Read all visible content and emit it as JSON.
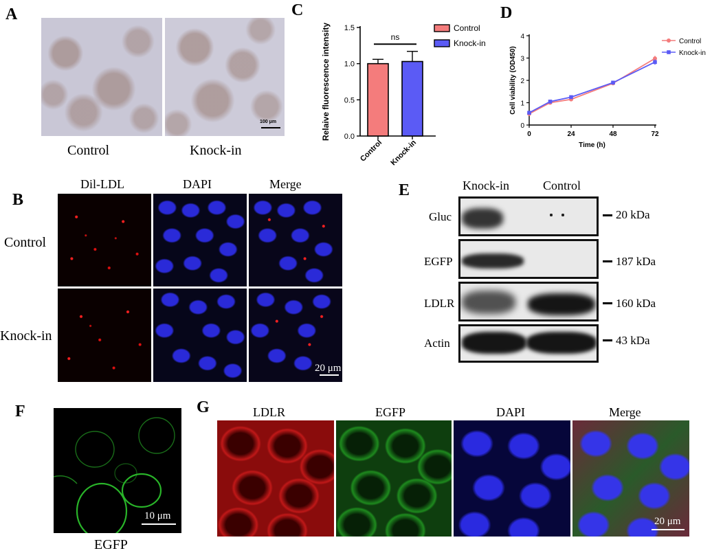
{
  "panels": {
    "A": {
      "label": "A",
      "captions": [
        "Control",
        "Knock-in"
      ],
      "scale_bar": "100 μm"
    },
    "B": {
      "label": "B",
      "columns": [
        "Dil-LDL",
        "DAPI",
        "Merge"
      ],
      "rows": [
        "Control",
        "Knock-in"
      ],
      "scale_bar": "20 μm"
    },
    "C": {
      "label": "C"
    },
    "D": {
      "label": "D"
    },
    "E": {
      "label": "E",
      "columns": [
        "Knock-in",
        "Control"
      ],
      "rows": [
        "Gluc",
        "EGFP",
        "LDLR",
        "Actin"
      ],
      "sizes": [
        "20 kDa",
        "187 kDa",
        "160 kDa",
        "43 kDa"
      ]
    },
    "F": {
      "label": "F",
      "caption": "EGFP",
      "scale_bar": "10 μm"
    },
    "G": {
      "label": "G",
      "columns": [
        "LDLR",
        "EGFP",
        "DAPI",
        "Merge"
      ],
      "scale_bar": "20 μm"
    }
  },
  "chart_data": [
    {
      "id": "C",
      "type": "bar",
      "categories": [
        "Control",
        "Knock-in"
      ],
      "values": [
        1.0,
        1.03
      ],
      "errors": [
        0.06,
        0.14
      ],
      "colors": [
        "#f47c7c",
        "#5b5bf5"
      ],
      "ylabel": "Relaive fluorescence intensity",
      "xlabel": "",
      "ylim": [
        0,
        1.5
      ],
      "yticks": [
        "0.0",
        "0.5",
        "1.0",
        "1.5"
      ],
      "annotation": "ns",
      "legend": [
        "Control",
        "Knock-in"
      ],
      "legend_position": "right"
    },
    {
      "id": "D",
      "type": "line",
      "x": [
        0,
        12,
        24,
        48,
        72
      ],
      "xticks": [
        "0",
        "24",
        "48",
        "72"
      ],
      "series": [
        {
          "name": "Control",
          "color": "#f47c7c",
          "values": [
            0.5,
            1.0,
            1.15,
            1.87,
            2.98
          ],
          "errors": [
            0.04,
            0.05,
            0.06,
            0.05,
            0.12
          ]
        },
        {
          "name": "Knock-in",
          "color": "#5b5bf5",
          "values": [
            0.55,
            1.05,
            1.25,
            1.9,
            2.82
          ],
          "errors": [
            0.04,
            0.05,
            0.06,
            0.05,
            0.12
          ]
        }
      ],
      "xlabel": "Time (h)",
      "ylabel": "Cell viability (OD450)",
      "ylim": [
        0,
        4
      ],
      "xlim": [
        0,
        72
      ],
      "yticks": [
        "0",
        "1",
        "2",
        "3",
        "4"
      ],
      "legend_position": "top-right"
    }
  ]
}
